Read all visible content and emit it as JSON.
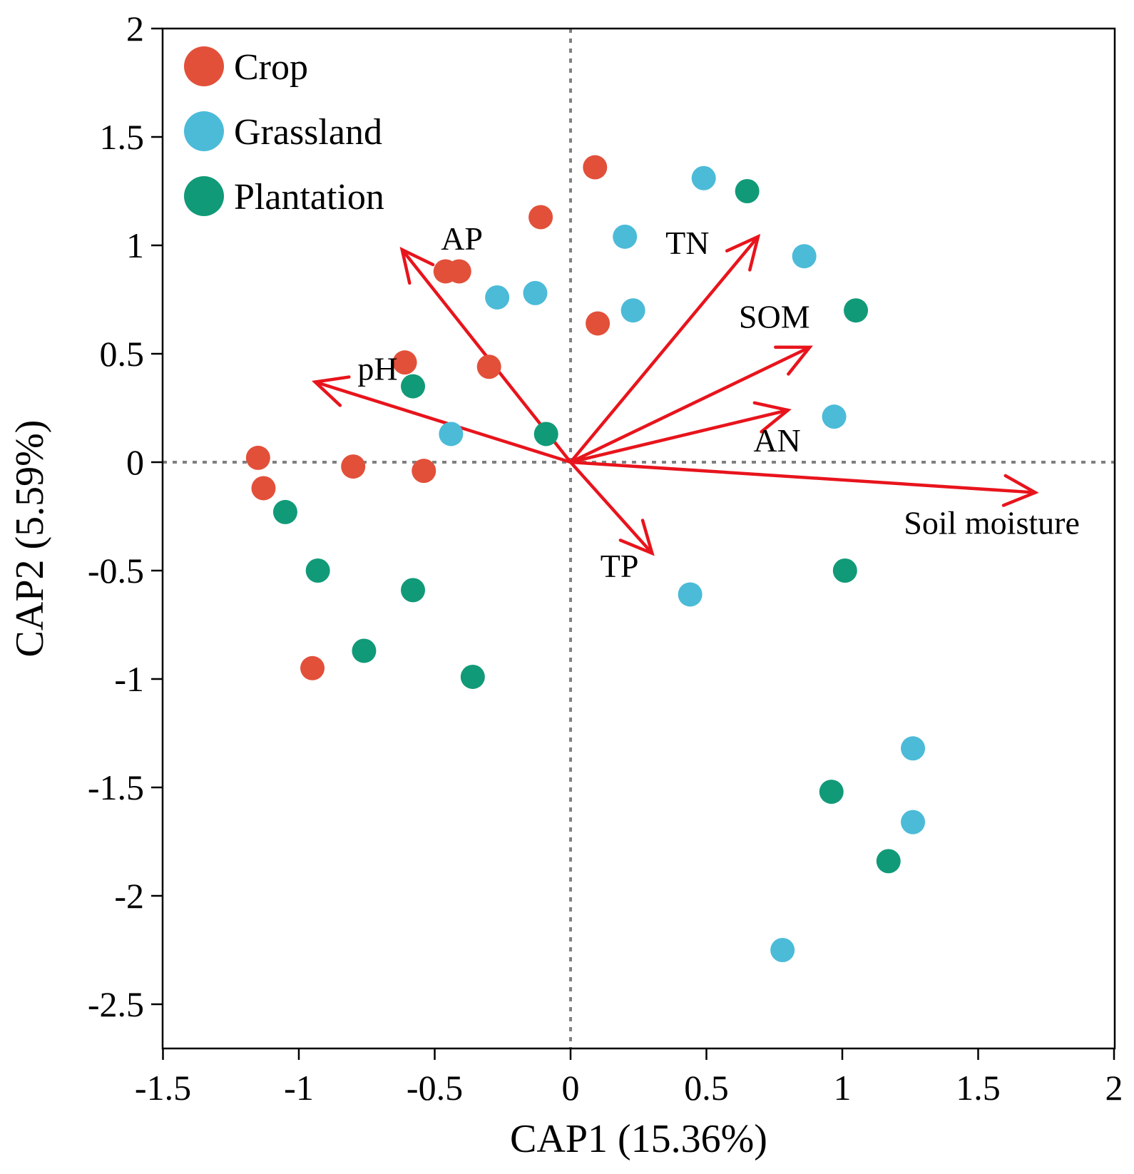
{
  "chart_data": {
    "type": "scatter",
    "xlabel": "CAP1 (15.36%)",
    "ylabel": "CAP2 (5.59%)",
    "xlim": [
      -1.5,
      2
    ],
    "ylim": [
      -2.7,
      2
    ],
    "xticks": [
      -1.5,
      -1,
      -0.5,
      0,
      0.5,
      1,
      1.5,
      2
    ],
    "yticks": [
      2,
      1.5,
      1,
      0.5,
      0,
      -0.5,
      -1,
      -1.5,
      -2,
      -2.5
    ],
    "xtick_labels": [
      "-1.5",
      "-1",
      "-0.5",
      "0",
      "0.5",
      "1",
      "1.5",
      "2"
    ],
    "ytick_labels": [
      "2",
      "1.5",
      "1",
      "0.5",
      "0",
      "-0.5",
      "-1",
      "-1.5",
      "-2",
      "-2.5"
    ],
    "reference_lines": {
      "x": 0,
      "y": 0,
      "style": "dotted"
    },
    "legend_position": "top-left",
    "series": [
      {
        "name": "Crop",
        "color": "#e2503a",
        "points": [
          [
            0.09,
            1.36
          ],
          [
            -0.11,
            1.13
          ],
          [
            -0.46,
            0.88
          ],
          [
            -0.41,
            0.88
          ],
          [
            0.1,
            0.64
          ],
          [
            -0.3,
            0.44
          ],
          [
            -0.61,
            0.46
          ],
          [
            -1.15,
            0.02
          ],
          [
            -0.8,
            -0.02
          ],
          [
            -0.54,
            -0.04
          ],
          [
            -1.13,
            -0.12
          ],
          [
            -0.95,
            -0.95
          ]
        ]
      },
      {
        "name": "Grassland",
        "color": "#4bbbd8",
        "points": [
          [
            0.49,
            1.31
          ],
          [
            0.2,
            1.04
          ],
          [
            0.86,
            0.95
          ],
          [
            -0.27,
            0.76
          ],
          [
            -0.13,
            0.78
          ],
          [
            0.23,
            0.7
          ],
          [
            0.97,
            0.21
          ],
          [
            -0.44,
            0.13
          ],
          [
            0.44,
            -0.61
          ],
          [
            1.26,
            -1.32
          ],
          [
            1.26,
            -1.66
          ],
          [
            0.78,
            -2.25
          ]
        ]
      },
      {
        "name": "Plantation",
        "color": "#119a78",
        "points": [
          [
            0.65,
            1.25
          ],
          [
            1.05,
            0.7
          ],
          [
            -0.58,
            0.35
          ],
          [
            -0.09,
            0.13
          ],
          [
            -1.05,
            -0.23
          ],
          [
            -0.93,
            -0.5
          ],
          [
            -0.58,
            -0.59
          ],
          [
            -0.76,
            -0.87
          ],
          [
            -0.36,
            -0.99
          ],
          [
            1.01,
            -0.5
          ],
          [
            0.96,
            -1.52
          ],
          [
            1.17,
            -1.84
          ]
        ]
      }
    ],
    "vectors": {
      "color": "#e8141c",
      "items": [
        {
          "name": "AP",
          "x": -0.62,
          "y": 0.98,
          "label_x": -0.4,
          "label_y": 0.98
        },
        {
          "name": "TN",
          "x": 0.69,
          "y": 1.04,
          "label_x": 0.43,
          "label_y": 0.96
        },
        {
          "name": "SOM",
          "x": 0.88,
          "y": 0.53,
          "label_x": 0.75,
          "label_y": 0.62
        },
        {
          "name": "pH",
          "x": -0.94,
          "y": 0.37,
          "label_x": -0.71,
          "label_y": 0.38
        },
        {
          "name": "AN",
          "x": 0.8,
          "y": 0.24,
          "label_x": 0.76,
          "label_y": 0.05
        },
        {
          "name": "Soil moisture",
          "x": 1.71,
          "y": -0.14,
          "label_x": 1.55,
          "label_y": -0.33
        },
        {
          "name": "TP",
          "x": 0.3,
          "y": -0.42,
          "label_x": 0.18,
          "label_y": -0.53
        }
      ]
    }
  }
}
